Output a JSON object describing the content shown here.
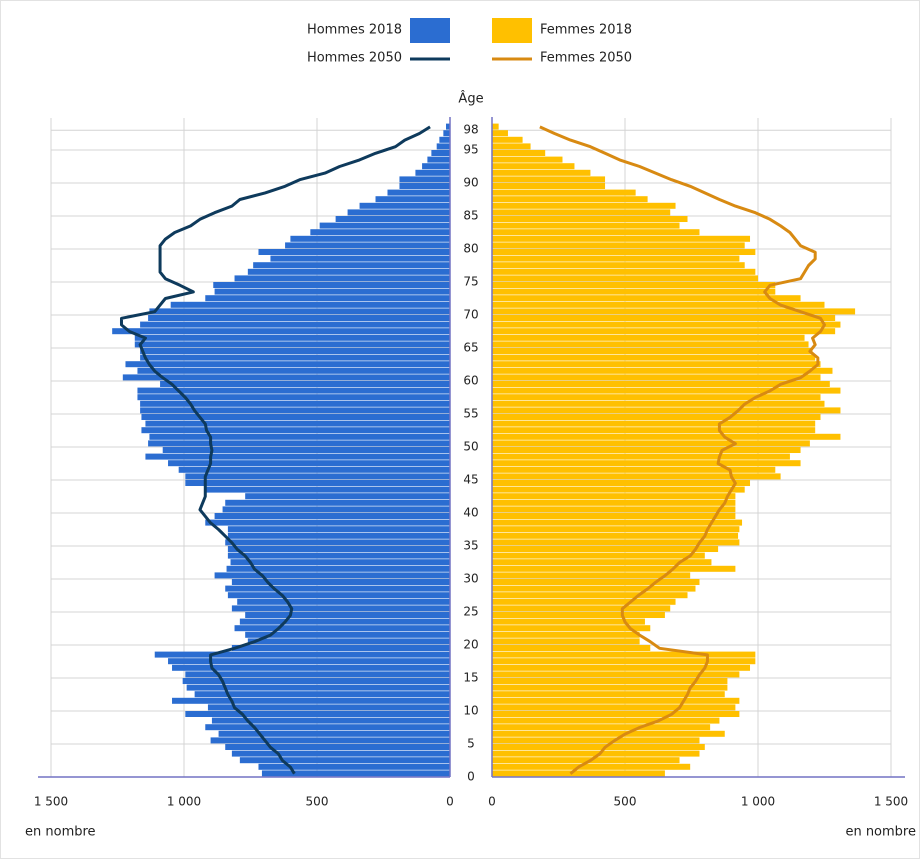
{
  "chart_data": {
    "type": "pyramid",
    "ylabel": "Âge",
    "xlabel": "en nombre",
    "categories": [
      0,
      1,
      2,
      3,
      4,
      5,
      6,
      7,
      8,
      9,
      10,
      11,
      12,
      13,
      14,
      15,
      16,
      17,
      18,
      19,
      20,
      21,
      22,
      23,
      24,
      25,
      26,
      27,
      28,
      29,
      30,
      31,
      32,
      33,
      34,
      35,
      36,
      37,
      38,
      39,
      40,
      41,
      42,
      43,
      44,
      45,
      46,
      47,
      48,
      49,
      50,
      51,
      52,
      53,
      54,
      55,
      56,
      57,
      58,
      59,
      60,
      61,
      62,
      63,
      64,
      65,
      66,
      67,
      68,
      69,
      70,
      71,
      72,
      73,
      74,
      75,
      76,
      77,
      78,
      79,
      80,
      81,
      82,
      83,
      84,
      85,
      86,
      87,
      88,
      89,
      90,
      91,
      92,
      93,
      94,
      95,
      96,
      97,
      98
    ],
    "ylim": [
      0,
      98
    ],
    "yticks": [
      0,
      5,
      10,
      15,
      20,
      25,
      30,
      35,
      40,
      45,
      50,
      55,
      60,
      65,
      70,
      75,
      80,
      85,
      90,
      95,
      98
    ],
    "xlim": [
      0,
      1500
    ],
    "xticks": [
      0,
      500,
      {
        "value": 1000,
        "label": "1 000"
      },
      {
        "value": 1500,
        "label": "1 500"
      }
    ],
    "grid": true,
    "series": [
      {
        "name": "Hommes 2018",
        "color": "#2b6dd1",
        "mark": "bar",
        "side": "left",
        "values": [
          707,
          720,
          790,
          820,
          845,
          900,
          870,
          920,
          895,
          995,
          910,
          1045,
          960,
          990,
          1005,
          995,
          1045,
          1060,
          1110,
          820,
          760,
          770,
          810,
          790,
          770,
          820,
          800,
          835,
          845,
          820,
          885,
          840,
          825,
          835,
          835,
          845,
          835,
          835,
          920,
          885,
          855,
          845,
          770,
          920,
          995,
          995,
          1020,
          1060,
          1145,
          1080,
          1135,
          1130,
          1160,
          1145,
          1160,
          1165,
          1165,
          1175,
          1175,
          1090,
          1230,
          1175,
          1220,
          1165,
          1165,
          1185,
          1185,
          1270,
          1165,
          1135,
          1130,
          1050,
          920,
          885,
          890,
          810,
          760,
          740,
          675,
          720,
          620,
          600,
          525,
          490,
          430,
          385,
          340,
          280,
          235,
          190,
          190,
          130,
          105,
          85,
          70,
          50,
          40,
          25,
          15
        ]
      },
      {
        "name": "Femmes 2018",
        "color": "#ffc000",
        "mark": "bar",
        "side": "right",
        "values": [
          650,
          745,
          705,
          780,
          800,
          780,
          875,
          820,
          855,
          930,
          915,
          930,
          875,
          885,
          885,
          930,
          970,
          990,
          990,
          595,
          555,
          555,
          595,
          575,
          650,
          670,
          690,
          735,
          765,
          780,
          745,
          915,
          825,
          800,
          850,
          930,
          925,
          930,
          940,
          915,
          915,
          915,
          915,
          950,
          970,
          1085,
          1065,
          1160,
          1120,
          1160,
          1195,
          1310,
          1215,
          1215,
          1235,
          1310,
          1250,
          1235,
          1310,
          1270,
          1235,
          1280,
          1235,
          1215,
          1205,
          1190,
          1175,
          1290,
          1310,
          1290,
          1365,
          1250,
          1160,
          1065,
          1065,
          1000,
          990,
          950,
          930,
          990,
          950,
          970,
          780,
          705,
          735,
          670,
          690,
          585,
          540,
          425,
          425,
          370,
          310,
          265,
          200,
          145,
          115,
          60,
          25
        ]
      },
      {
        "name": "Hommes 2050",
        "color": "#0e3a5c",
        "mark": "line",
        "side": "left",
        "values": [
          585,
          600,
          630,
          645,
          675,
          695,
          715,
          735,
          760,
          780,
          810,
          820,
          835,
          845,
          855,
          870,
          895,
          900,
          900,
          810,
          735,
          675,
          645,
          620,
          600,
          595,
          610,
          630,
          660,
          685,
          705,
          735,
          750,
          770,
          800,
          820,
          845,
          870,
          900,
          920,
          940,
          930,
          920,
          920,
          920,
          920,
          910,
          900,
          900,
          895,
          900,
          900,
          915,
          920,
          940,
          960,
          975,
          995,
          1020,
          1045,
          1080,
          1110,
          1130,
          1145,
          1155,
          1165,
          1145,
          1205,
          1235,
          1235,
          1110,
          1090,
          1070,
          965,
          1015,
          1070,
          1090,
          1090,
          1090,
          1090,
          1090,
          1070,
          1035,
          975,
          940,
          885,
          820,
          790,
          695,
          620,
          565,
          470,
          415,
          340,
          280,
          205,
          170,
          115,
          75
        ]
      },
      {
        "name": "Femmes 2050",
        "color": "#d88a12",
        "mark": "line",
        "side": "right",
        "values": [
          295,
          325,
          370,
          405,
          425,
          460,
          500,
          555,
          625,
          675,
          705,
          720,
          735,
          745,
          765,
          780,
          800,
          810,
          810,
          630,
          595,
          555,
          520,
          500,
          490,
          490,
          520,
          550,
          585,
          615,
          650,
          680,
          705,
          745,
          765,
          780,
          800,
          810,
          825,
          840,
          855,
          875,
          885,
          900,
          915,
          900,
          895,
          850,
          855,
          865,
          915,
          875,
          855,
          855,
          895,
          925,
          950,
          990,
          1045,
          1085,
          1160,
          1195,
          1225,
          1225,
          1195,
          1215,
          1205,
          1235,
          1250,
          1235,
          1160,
          1085,
          1045,
          1025,
          1045,
          1160,
          1175,
          1190,
          1215,
          1215,
          1160,
          1140,
          1120,
          1085,
          1045,
          990,
          915,
          855,
          800,
          745,
          675,
          615,
          555,
          480,
          425,
          370,
          295,
          235,
          180
        ]
      }
    ]
  }
}
